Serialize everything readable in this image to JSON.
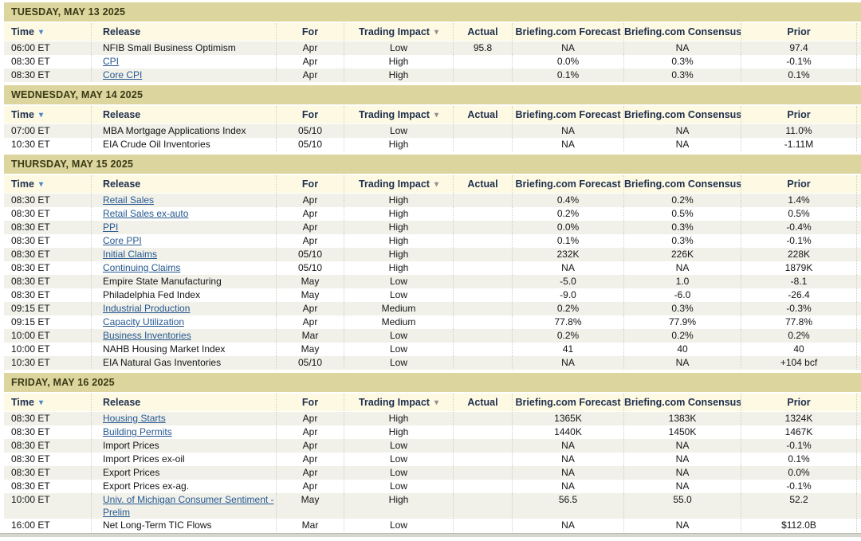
{
  "colors": {
    "day_band": "#dcd59d",
    "header_bg": "#fdf9e3",
    "row_alt": "#f1f1ea",
    "link": "#26588f",
    "sort_blue": "#4b86c8",
    "sort_gray": "#8f8f8f"
  },
  "columns": [
    {
      "key": "time",
      "label": "Time",
      "sort": "blue",
      "sortable": true
    },
    {
      "key": "release",
      "label": "Release",
      "sortable": false
    },
    {
      "key": "for",
      "label": "For",
      "sortable": false
    },
    {
      "key": "impact",
      "label": "Trading Impact",
      "sort": "gray",
      "sortable": true
    },
    {
      "key": "actual",
      "label": "Actual",
      "sortable": false
    },
    {
      "key": "forecast",
      "label": "Briefing.com Forecast",
      "sortable": false
    },
    {
      "key": "consensus",
      "label": "Briefing.com Consensus",
      "sortable": false
    },
    {
      "key": "prior",
      "label": "Prior",
      "sortable": false
    }
  ],
  "days": [
    {
      "title": "TUESDAY, MAY 13 2025",
      "rows": [
        {
          "time": "06:00 ET",
          "release": "NFIB Small Business Optimism",
          "link": false,
          "for": "Apr",
          "impact": "Low",
          "actual": "95.8",
          "forecast": "NA",
          "consensus": "NA",
          "prior": "97.4"
        },
        {
          "time": "08:30 ET",
          "release": "CPI",
          "link": true,
          "for": "Apr",
          "impact": "High",
          "actual": "",
          "forecast": "0.0%",
          "consensus": "0.3%",
          "prior": "-0.1%"
        },
        {
          "time": "08:30 ET",
          "release": "Core CPI",
          "link": true,
          "for": "Apr",
          "impact": "High",
          "actual": "",
          "forecast": "0.1%",
          "consensus": "0.3%",
          "prior": "0.1%"
        }
      ]
    },
    {
      "title": "WEDNESDAY, MAY 14 2025",
      "rows": [
        {
          "time": "07:00 ET",
          "release": "MBA Mortgage Applications Index",
          "link": false,
          "for": "05/10",
          "impact": "Low",
          "actual": "",
          "forecast": "NA",
          "consensus": "NA",
          "prior": "11.0%"
        },
        {
          "time": "10:30 ET",
          "release": "EIA Crude Oil Inventories",
          "link": false,
          "for": "05/10",
          "impact": "High",
          "actual": "",
          "forecast": "NA",
          "consensus": "NA",
          "prior": "-1.11M"
        }
      ]
    },
    {
      "title": "THURSDAY, MAY 15 2025",
      "rows": [
        {
          "time": "08:30 ET",
          "release": "Retail Sales",
          "link": true,
          "for": "Apr",
          "impact": "High",
          "actual": "",
          "forecast": "0.4%",
          "consensus": "0.2%",
          "prior": "1.4%"
        },
        {
          "time": "08:30 ET",
          "release": "Retail Sales ex-auto",
          "link": true,
          "for": "Apr",
          "impact": "High",
          "actual": "",
          "forecast": "0.2%",
          "consensus": "0.5%",
          "prior": "0.5%"
        },
        {
          "time": "08:30 ET",
          "release": "PPI",
          "link": true,
          "for": "Apr",
          "impact": "High",
          "actual": "",
          "forecast": "0.0%",
          "consensus": "0.3%",
          "prior": "-0.4%"
        },
        {
          "time": "08:30 ET",
          "release": "Core PPI",
          "link": true,
          "for": "Apr",
          "impact": "High",
          "actual": "",
          "forecast": "0.1%",
          "consensus": "0.3%",
          "prior": "-0.1%"
        },
        {
          "time": "08:30 ET",
          "release": "Initial Claims",
          "link": true,
          "for": "05/10",
          "impact": "High",
          "actual": "",
          "forecast": "232K",
          "consensus": "226K",
          "prior": "228K"
        },
        {
          "time": "08:30 ET",
          "release": "Continuing Claims",
          "link": true,
          "for": "05/10",
          "impact": "High",
          "actual": "",
          "forecast": "NA",
          "consensus": "NA",
          "prior": "1879K"
        },
        {
          "time": "08:30 ET",
          "release": "Empire State Manufacturing",
          "link": false,
          "for": "May",
          "impact": "Low",
          "actual": "",
          "forecast": "-5.0",
          "consensus": "1.0",
          "prior": "-8.1"
        },
        {
          "time": "08:30 ET",
          "release": "Philadelphia Fed Index",
          "link": false,
          "for": "May",
          "impact": "Low",
          "actual": "",
          "forecast": "-9.0",
          "consensus": "-6.0",
          "prior": "-26.4"
        },
        {
          "time": "09:15 ET",
          "release": "Industrial Production",
          "link": true,
          "for": "Apr",
          "impact": "Medium",
          "actual": "",
          "forecast": "0.2%",
          "consensus": "0.3%",
          "prior": "-0.3%"
        },
        {
          "time": "09:15 ET",
          "release": "Capacity Utilization",
          "link": true,
          "for": "Apr",
          "impact": "Medium",
          "actual": "",
          "forecast": "77.8%",
          "consensus": "77.9%",
          "prior": "77.8%"
        },
        {
          "time": "10:00 ET",
          "release": "Business Inventories",
          "link": true,
          "for": "Mar",
          "impact": "Low",
          "actual": "",
          "forecast": "0.2%",
          "consensus": "0.2%",
          "prior": "0.2%"
        },
        {
          "time": "10:00 ET",
          "release": "NAHB Housing Market Index",
          "link": false,
          "for": "May",
          "impact": "Low",
          "actual": "",
          "forecast": "41",
          "consensus": "40",
          "prior": "40"
        },
        {
          "time": "10:30 ET",
          "release": "EIA Natural Gas Inventories",
          "link": false,
          "for": "05/10",
          "impact": "Low",
          "actual": "",
          "forecast": "NA",
          "consensus": "NA",
          "prior": "+104 bcf"
        }
      ]
    },
    {
      "title": "FRIDAY, MAY 16 2025",
      "rows": [
        {
          "time": "08:30 ET",
          "release": "Housing Starts",
          "link": true,
          "for": "Apr",
          "impact": "High",
          "actual": "",
          "forecast": "1365K",
          "consensus": "1383K",
          "prior": "1324K"
        },
        {
          "time": "08:30 ET",
          "release": "Building Permits",
          "link": true,
          "for": "Apr",
          "impact": "High",
          "actual": "",
          "forecast": "1440K",
          "consensus": "1450K",
          "prior": "1467K"
        },
        {
          "time": "08:30 ET",
          "release": "Import Prices",
          "link": false,
          "for": "Apr",
          "impact": "Low",
          "actual": "",
          "forecast": "NA",
          "consensus": "NA",
          "prior": "-0.1%"
        },
        {
          "time": "08:30 ET",
          "release": "Import Prices ex-oil",
          "link": false,
          "for": "Apr",
          "impact": "Low",
          "actual": "",
          "forecast": "NA",
          "consensus": "NA",
          "prior": "0.1%"
        },
        {
          "time": "08:30 ET",
          "release": "Export Prices",
          "link": false,
          "for": "Apr",
          "impact": "Low",
          "actual": "",
          "forecast": "NA",
          "consensus": "NA",
          "prior": "0.0%"
        },
        {
          "time": "08:30 ET",
          "release": "Export Prices ex-ag.",
          "link": false,
          "for": "Apr",
          "impact": "Low",
          "actual": "",
          "forecast": "NA",
          "consensus": "NA",
          "prior": "-0.1%"
        },
        {
          "time": "10:00 ET",
          "release": "Univ. of Michigan Consumer Sentiment - Prelim",
          "link": true,
          "for": "May",
          "impact": "High",
          "actual": "",
          "forecast": "56.5",
          "consensus": "55.0",
          "prior": "52.2"
        },
        {
          "time": "16:00 ET",
          "release": "Net Long-Term TIC Flows",
          "link": false,
          "for": "Mar",
          "impact": "Low",
          "actual": "",
          "forecast": "NA",
          "consensus": "NA",
          "prior": "$112.0B"
        }
      ]
    }
  ]
}
